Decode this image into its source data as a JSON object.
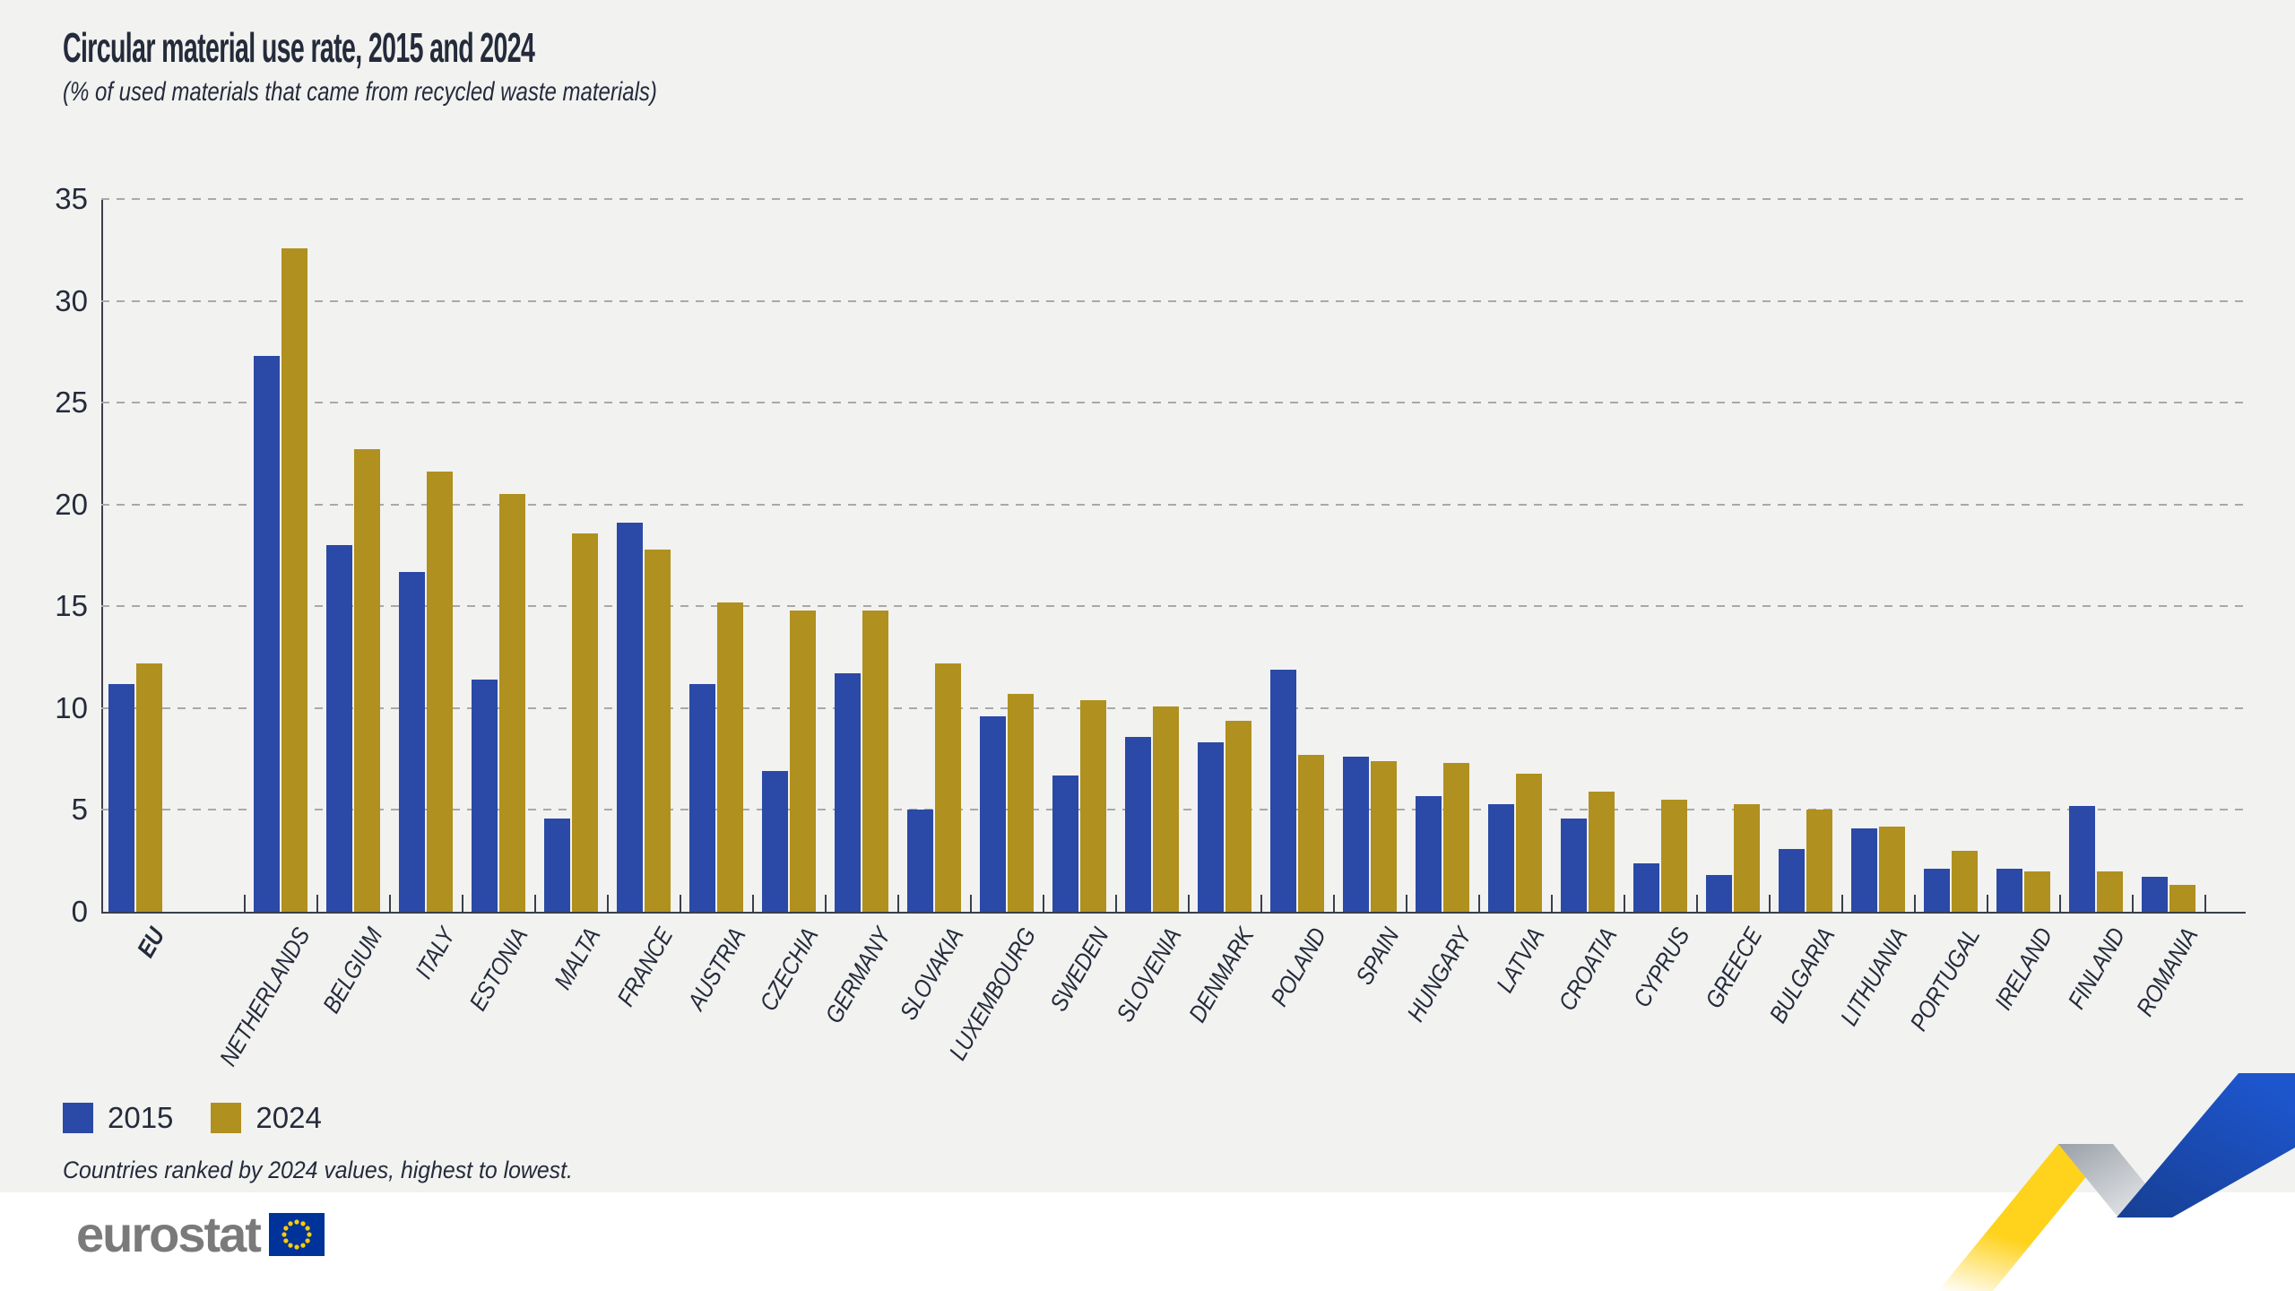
{
  "title": "Circular material use rate, 2015 and 2024",
  "subtitle": "(% of used materials that came from recycled waste materials)",
  "legend": {
    "series1_label": "2015",
    "series2_label": "2024"
  },
  "footnote": "Countries ranked by 2024 values, highest to lowest.",
  "logo": {
    "text": "eurostat"
  },
  "colors": {
    "series_2015": "#2b49a6",
    "series_2024": "#b0901e",
    "background": "#f2f2f1",
    "text": "#242b3a",
    "gridline": "#a9a9a9",
    "axis": "#3a3f4a",
    "logo_gray": "#7a7a7a",
    "flag_blue": "#003399",
    "star_yellow": "#ffcc00",
    "ribbon_yellow": "#ffd21c",
    "ribbon_blue": "#1d52c4",
    "ribbon_gray": "#9aa0a8"
  },
  "chart_data": {
    "type": "bar",
    "title": "Circular material use rate, 2015 and 2024",
    "subtitle": "(% of used materials that came from recycled waste materials)",
    "ylabel": "",
    "ylim": [
      0,
      35
    ],
    "yticks": [
      0,
      5,
      10,
      15,
      20,
      25,
      30,
      35
    ],
    "grid": "horizontal-dashed",
    "legend_position": "bottom-left",
    "categories": [
      "EU",
      "NETHERLANDS",
      "BELGIUM",
      "ITALY",
      "ESTONIA",
      "MALTA",
      "FRANCE",
      "AUSTRIA",
      "CZECHIA",
      "GERMANY",
      "SLOVAKIA",
      "LUXEMBOURG",
      "SWEDEN",
      "SLOVENIA",
      "DENMARK",
      "POLAND",
      "SPAIN",
      "HUNGARY",
      "LATVIA",
      "CROATIA",
      "CYPRUS",
      "GREECE",
      "BULGARIA",
      "LITHUANIA",
      "PORTUGAL",
      "IRELAND",
      "FINLAND",
      "ROMANIA"
    ],
    "series": [
      {
        "name": "2015",
        "values": [
          11.2,
          27.3,
          18.0,
          16.7,
          11.4,
          4.6,
          19.1,
          11.2,
          6.9,
          11.7,
          5.0,
          9.6,
          6.7,
          8.6,
          8.3,
          11.9,
          7.6,
          5.7,
          5.3,
          4.6,
          2.4,
          1.8,
          3.1,
          4.1,
          2.1,
          2.1,
          5.2,
          1.7
        ]
      },
      {
        "name": "2024",
        "values": [
          12.2,
          32.6,
          22.7,
          21.6,
          20.5,
          18.6,
          17.8,
          15.2,
          14.8,
          14.8,
          12.2,
          10.7,
          10.4,
          10.1,
          9.4,
          7.7,
          7.4,
          7.3,
          6.8,
          5.9,
          5.5,
          5.3,
          5.0,
          4.2,
          3.0,
          2.0,
          2.0,
          1.3
        ]
      }
    ]
  }
}
